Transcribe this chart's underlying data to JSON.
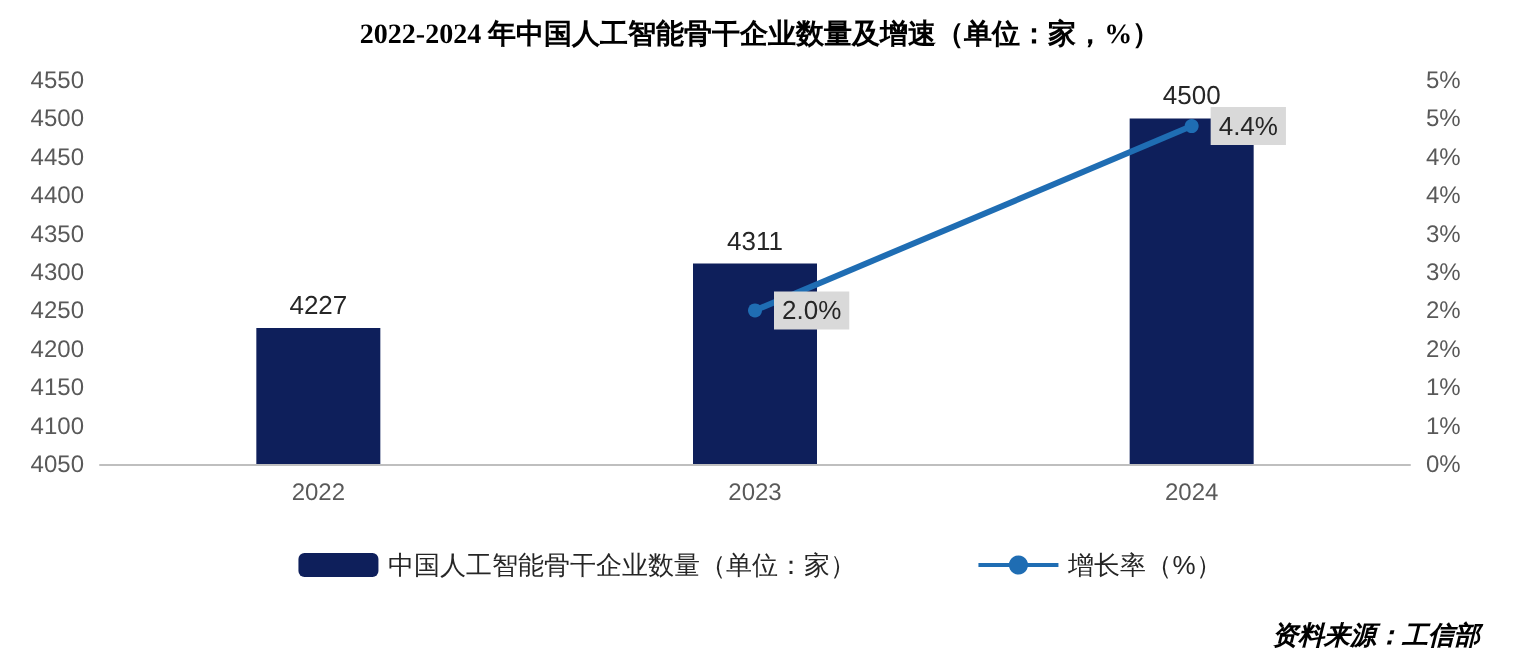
{
  "chart_data": {
    "type": "bar",
    "title": "2022-2024 年中国人工智能骨干企业数量及增速（单位：家，%）",
    "categories": [
      "2022",
      "2023",
      "2024"
    ],
    "series": [
      {
        "name": "中国人工智能骨干企业数量（单位：家）",
        "color": "#0e1f5b",
        "values": [
          4227,
          4311,
          4500
        ],
        "value_labels": [
          "4227",
          "4311",
          "4500"
        ]
      },
      {
        "name": "增长率（%）",
        "type": "line",
        "axis": "y2",
        "color": "#1f6db3",
        "values": [
          null,
          2.0,
          4.4
        ],
        "value_labels": [
          null,
          "2.0%",
          "4.4%"
        ]
      }
    ],
    "ylim": [
      4050,
      4550
    ],
    "yticks": [
      4050,
      4100,
      4150,
      4200,
      4250,
      4300,
      4350,
      4400,
      4450,
      4500,
      4550
    ],
    "y2lim": [
      0,
      5
    ],
    "y2ticks": [
      {
        "value": 0,
        "label": "0%"
      },
      {
        "value": 0.5,
        "label": "1%"
      },
      {
        "value": 1,
        "label": "1%"
      },
      {
        "value": 1.5,
        "label": "2%"
      },
      {
        "value": 2,
        "label": "2%"
      },
      {
        "value": 2.5,
        "label": "3%"
      },
      {
        "value": 3,
        "label": "3%"
      },
      {
        "value": 3.5,
        "label": "4%"
      },
      {
        "value": 4,
        "label": "4%"
      },
      {
        "value": 4.5,
        "label": "5%"
      },
      {
        "value": 5,
        "label": "5%"
      }
    ],
    "legend": "bottom",
    "grid": false,
    "marker": "circle",
    "line_style": "solid",
    "annotations": [
      "资料来源：工信部"
    ]
  }
}
